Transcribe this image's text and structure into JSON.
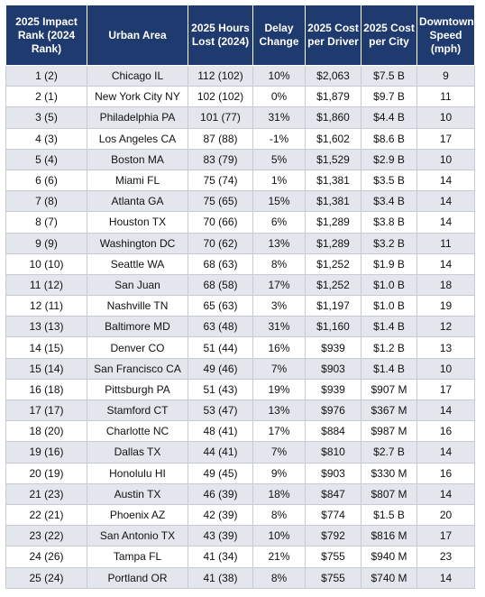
{
  "headers": [
    "2025 Impact Rank (2024 Rank)",
    "Urban Area",
    "2025 Hours Lost (2024)",
    "Delay Change",
    "2025 Cost per Driver",
    "2025 Cost per City",
    "Downtown Speed (mph)"
  ],
  "rows": [
    [
      "1 (2)",
      "Chicago IL",
      "112 (102)",
      "10%",
      "$2,063",
      "$7.5 B",
      "9"
    ],
    [
      "2 (1)",
      "New York City NY",
      "102 (102)",
      "0%",
      "$1,879",
      "$9.7 B",
      "11"
    ],
    [
      "3 (5)",
      "Philadelphia PA",
      "101 (77)",
      "31%",
      "$1,860",
      "$4.4 B",
      "10"
    ],
    [
      "4 (3)",
      "Los Angeles CA",
      "87 (88)",
      "-1%",
      "$1,602",
      "$8.6 B",
      "17"
    ],
    [
      "5 (4)",
      "Boston MA",
      "83 (79)",
      "5%",
      "$1,529",
      "$2.9 B",
      "10"
    ],
    [
      "6 (6)",
      "Miami FL",
      "75 (74)",
      "1%",
      "$1,381",
      "$3.5 B",
      "14"
    ],
    [
      "7 (8)",
      "Atlanta GA",
      "75 (65)",
      "15%",
      "$1,381",
      "$3.4 B",
      "14"
    ],
    [
      "8 (7)",
      "Houston TX",
      "70 (66)",
      "6%",
      "$1,289",
      "$3.8 B",
      "14"
    ],
    [
      "9 (9)",
      "Washington DC",
      "70 (62)",
      "13%",
      "$1,289",
      "$3.2 B",
      "11"
    ],
    [
      "10 (10)",
      "Seattle WA",
      "68 (63)",
      "8%",
      "$1,252",
      "$1.9 B",
      "14"
    ],
    [
      "11 (12)",
      "San Juan",
      "68 (58)",
      "17%",
      "$1,252",
      "$1.0 B",
      "18"
    ],
    [
      "12 (11)",
      "Nashville TN",
      "65 (63)",
      "3%",
      "$1,197",
      "$1.0 B",
      "19"
    ],
    [
      "13 (13)",
      "Baltimore MD",
      "63 (48)",
      "31%",
      "$1,160",
      "$1.4 B",
      "12"
    ],
    [
      "14 (15)",
      "Denver CO",
      "51 (44)",
      "16%",
      "$939",
      "$1.2 B",
      "13"
    ],
    [
      "15 (14)",
      "San Francisco CA",
      "49 (46)",
      "7%",
      "$903",
      "$1.4 B",
      "10"
    ],
    [
      "16 (18)",
      "Pittsburgh PA",
      "51 (43)",
      "19%",
      "$939",
      "$907 M",
      "17"
    ],
    [
      "17 (17)",
      "Stamford CT",
      "53 (47)",
      "13%",
      "$976",
      "$367 M",
      "14"
    ],
    [
      "18 (20)",
      "Charlotte NC",
      "48 (41)",
      "17%",
      "$884",
      "$987 M",
      "16"
    ],
    [
      "19 (16)",
      "Dallas TX",
      "44 (41)",
      "7%",
      "$810",
      "$2.7 B",
      "14"
    ],
    [
      "20 (19)",
      "Honolulu HI",
      "49 (45)",
      "9%",
      "$903",
      "$330 M",
      "16"
    ],
    [
      "21 (23)",
      "Austin TX",
      "46 (39)",
      "18%",
      "$847",
      "$807 M",
      "14"
    ],
    [
      "22 (21)",
      "Phoenix AZ",
      "42 (39)",
      "8%",
      "$774",
      "$1.5 B",
      "20"
    ],
    [
      "23 (22)",
      "San Antonio TX",
      "43 (39)",
      "10%",
      "$792",
      "$816 M",
      "17"
    ],
    [
      "24 (26)",
      "Tampa FL",
      "41 (34)",
      "21%",
      "$755",
      "$940 M",
      "23"
    ],
    [
      "25 (24)",
      "Portland OR",
      "41 (38)",
      "8%",
      "$755",
      "$740 M",
      "14"
    ]
  ]
}
